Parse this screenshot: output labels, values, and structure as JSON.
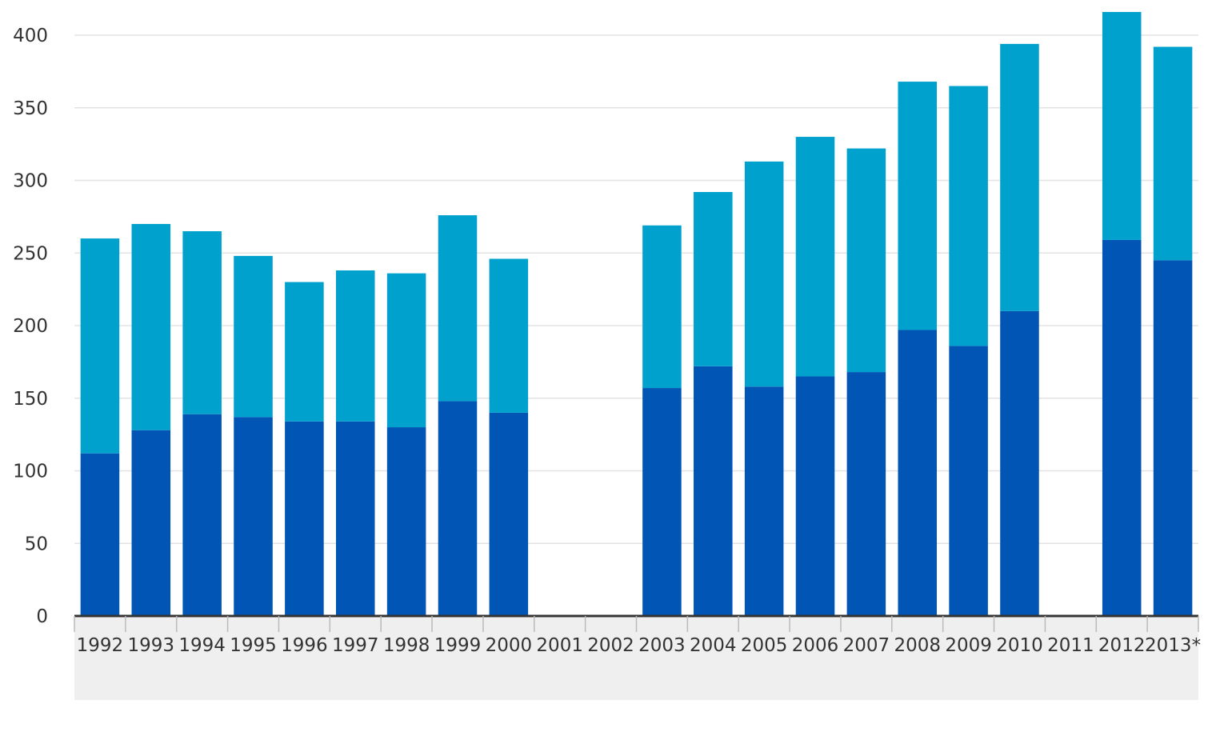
{
  "chart_data": {
    "type": "bar",
    "stacked": true,
    "categories": [
      "1992",
      "1993",
      "1994",
      "1995",
      "1996",
      "1997",
      "1998",
      "1999",
      "2000",
      "2001",
      "2002",
      "2003",
      "2004",
      "2005",
      "2006",
      "2007",
      "2008",
      "2009",
      "2010",
      "2011",
      "2012",
      "2013*"
    ],
    "series": [
      {
        "color": "#0055b5",
        "values": [
          112,
          128,
          139,
          137,
          134,
          134,
          130,
          148,
          140,
          null,
          null,
          157,
          172,
          158,
          165,
          168,
          197,
          186,
          210,
          null,
          259,
          245
        ]
      },
      {
        "color": "#00a1cd",
        "values": [
          148,
          142,
          126,
          111,
          96,
          104,
          106,
          128,
          106,
          null,
          null,
          112,
          120,
          155,
          165,
          154,
          171,
          179,
          184,
          null,
          157,
          147
        ]
      }
    ],
    "yticks": [
      0,
      50,
      100,
      150,
      200,
      250,
      300,
      350,
      400
    ],
    "ylim": [
      0,
      400
    ],
    "grid": true,
    "title": "",
    "xlabel": "",
    "ylabel": "",
    "legend": "none"
  }
}
